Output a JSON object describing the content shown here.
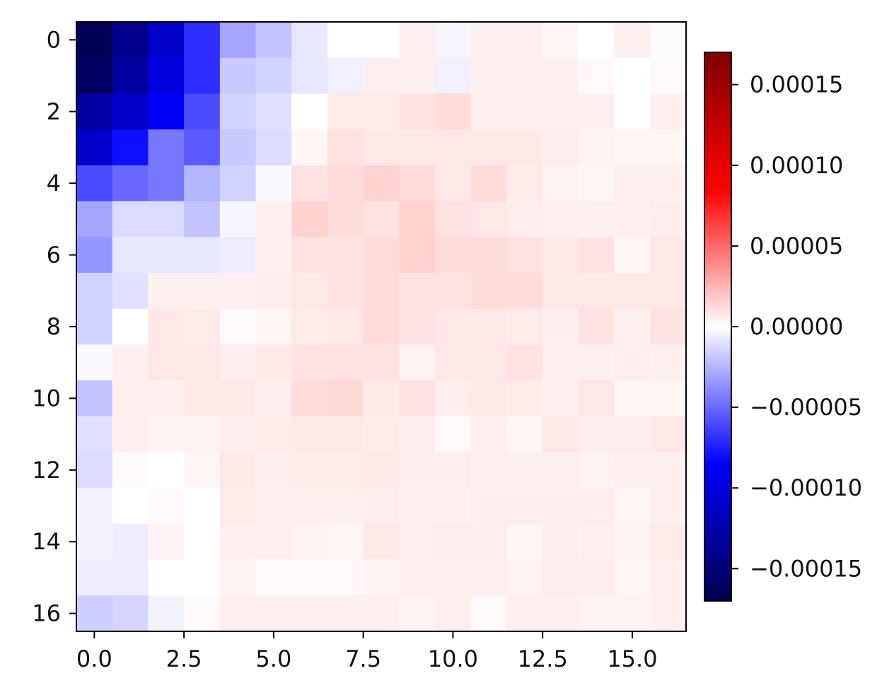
{
  "chart_data": {
    "type": "heatmap",
    "title": "",
    "xlabel": "",
    "ylabel": "",
    "rows": 17,
    "cols": 17,
    "x_ticks": [
      {
        "value": 0,
        "label": "0.0"
      },
      {
        "value": 2.5,
        "label": "2.5"
      },
      {
        "value": 5,
        "label": "5.0"
      },
      {
        "value": 7.5,
        "label": "7.5"
      },
      {
        "value": 10,
        "label": "10.0"
      },
      {
        "value": 12.5,
        "label": "12.5"
      },
      {
        "value": 15,
        "label": "15.0"
      }
    ],
    "y_ticks": [
      {
        "value": 0,
        "label": "0"
      },
      {
        "value": 2,
        "label": "2"
      },
      {
        "value": 4,
        "label": "4"
      },
      {
        "value": 6,
        "label": "6"
      },
      {
        "value": 8,
        "label": "8"
      },
      {
        "value": 10,
        "label": "10"
      },
      {
        "value": 12,
        "label": "12"
      },
      {
        "value": 14,
        "label": "14"
      },
      {
        "value": 16,
        "label": "16"
      }
    ],
    "colorbar": {
      "colormap": "seismic",
      "vmin": -0.00017,
      "vmax": 0.00017,
      "ticks": [
        {
          "value": 0.00015,
          "label": "0.00015"
        },
        {
          "value": 0.0001,
          "label": "0.00010"
        },
        {
          "value": 5e-05,
          "label": "0.00005"
        },
        {
          "value": 0,
          "label": "0.00000"
        },
        {
          "value": -5e-05,
          "label": "−0.00005"
        },
        {
          "value": -0.0001,
          "label": "−0.00010"
        },
        {
          "value": -0.00015,
          "label": "−0.00015"
        }
      ]
    },
    "values": [
      [
        -0.000165,
        -0.00014,
        -0.00011,
        -7e-05,
        -3e-05,
        -2e-05,
        -8e-06,
        0.0,
        0.0,
        5e-06,
        -3e-06,
        5e-06,
        5e-06,
        3e-06,
        0.0,
        5e-06,
        -1e-06
      ],
      [
        -0.00016,
        -0.00013,
        -0.0001,
        -7e-05,
        -1.8e-05,
        -1.5e-05,
        -8e-06,
        -5e-06,
        5e-06,
        5e-06,
        -5e-06,
        5e-06,
        5e-06,
        5e-06,
        2e-06,
        0.0,
        2e-06
      ],
      [
        -0.00013,
        -0.00011,
        -9e-05,
        -6e-05,
        -1.5e-05,
        -1e-05,
        0.0,
        7e-06,
        7e-06,
        1e-05,
        1.2e-05,
        5e-06,
        5e-06,
        5e-06,
        5e-06,
        0.0,
        5e-06
      ],
      [
        -0.00011,
        -8e-05,
        -4.5e-05,
        -5.5e-05,
        -1.8e-05,
        -1.2e-05,
        3e-06,
        1e-05,
        8e-06,
        8e-06,
        8e-06,
        8e-06,
        8e-06,
        6e-06,
        4e-06,
        3e-06,
        3e-06
      ],
      [
        -6e-05,
        -5e-05,
        -4.5e-05,
        -2.5e-05,
        -1.5e-05,
        -2e-06,
        1e-05,
        1.2e-05,
        1.5e-05,
        1.2e-05,
        8e-06,
        1.2e-05,
        7e-06,
        4e-06,
        3e-06,
        5e-06,
        5e-06
      ],
      [
        -3e-05,
        -1.2e-05,
        -1.2e-05,
        -2e-05,
        -3e-06,
        5e-06,
        1.5e-05,
        1.2e-05,
        1e-05,
        1.5e-05,
        1e-05,
        8e-06,
        6e-06,
        5e-06,
        5e-06,
        5e-06,
        6e-06
      ],
      [
        -3.5e-05,
        -8e-06,
        -8e-06,
        -8e-06,
        -6e-06,
        5e-06,
        1e-05,
        1e-05,
        1.2e-05,
        1.5e-05,
        1.2e-05,
        1.2e-05,
        1e-05,
        8e-06,
        1e-05,
        3e-06,
        8e-06
      ],
      [
        -1.5e-05,
        -1e-05,
        5e-06,
        5e-06,
        5e-06,
        6e-06,
        8e-06,
        1e-05,
        1.2e-05,
        1e-05,
        1e-05,
        1.2e-05,
        1.2e-05,
        8e-06,
        8e-06,
        8e-06,
        8e-06
      ],
      [
        -1.5e-05,
        0.0,
        8e-06,
        7e-06,
        2e-06,
        3e-06,
        7e-06,
        8e-06,
        1.2e-05,
        1e-05,
        8e-06,
        8e-06,
        7e-06,
        6e-06,
        1e-05,
        5e-06,
        1e-05
      ],
      [
        -2e-06,
        5e-06,
        8e-06,
        8e-06,
        6e-06,
        8e-06,
        1e-05,
        1e-05,
        1e-05,
        4e-06,
        8e-06,
        8e-06,
        1e-05,
        5e-06,
        5e-06,
        6e-06,
        5e-06
      ],
      [
        -2e-05,
        5e-06,
        5e-06,
        8e-06,
        8e-06,
        6e-06,
        1.2e-05,
        1.3e-05,
        8e-06,
        1e-05,
        6e-06,
        8e-06,
        7e-06,
        5e-06,
        8e-06,
        3e-06,
        3e-06
      ],
      [
        -1e-05,
        5e-06,
        4e-06,
        4e-06,
        6e-06,
        7e-06,
        8e-06,
        8e-06,
        7e-06,
        6e-06,
        2e-06,
        5e-06,
        3e-06,
        8e-06,
        6e-06,
        6e-06,
        8e-06
      ],
      [
        -1.2e-05,
        2e-06,
        0.0,
        3e-06,
        8e-06,
        6e-06,
        7e-06,
        7e-06,
        8e-06,
        6e-06,
        6e-06,
        5e-06,
        5e-06,
        5e-06,
        4e-06,
        5e-06,
        5e-06
      ],
      [
        -4e-06,
        0.0,
        2e-06,
        0.0,
        7e-06,
        5e-06,
        5e-06,
        5e-06,
        6e-06,
        5e-06,
        5e-06,
        6e-06,
        6e-06,
        6e-06,
        6e-06,
        3e-06,
        5e-06
      ],
      [
        -4e-06,
        -6e-06,
        4e-06,
        0.0,
        5e-06,
        5e-06,
        4e-06,
        3e-06,
        8e-06,
        5e-06,
        6e-06,
        6e-06,
        3e-06,
        6e-06,
        5e-06,
        4e-06,
        7e-06
      ],
      [
        -6e-06,
        -6e-06,
        0.0,
        0.0,
        4e-06,
        2e-06,
        2e-06,
        2e-06,
        4e-06,
        5e-06,
        5e-06,
        5e-06,
        4e-06,
        6e-06,
        6e-06,
        3e-06,
        5e-06
      ],
      [
        -1.6e-05,
        -1.4e-05,
        -4e-06,
        2e-06,
        5e-06,
        5e-06,
        5e-06,
        5e-06,
        5e-06,
        4e-06,
        5e-06,
        2e-06,
        5e-06,
        5e-06,
        4e-06,
        4e-06,
        5e-06
      ]
    ]
  }
}
